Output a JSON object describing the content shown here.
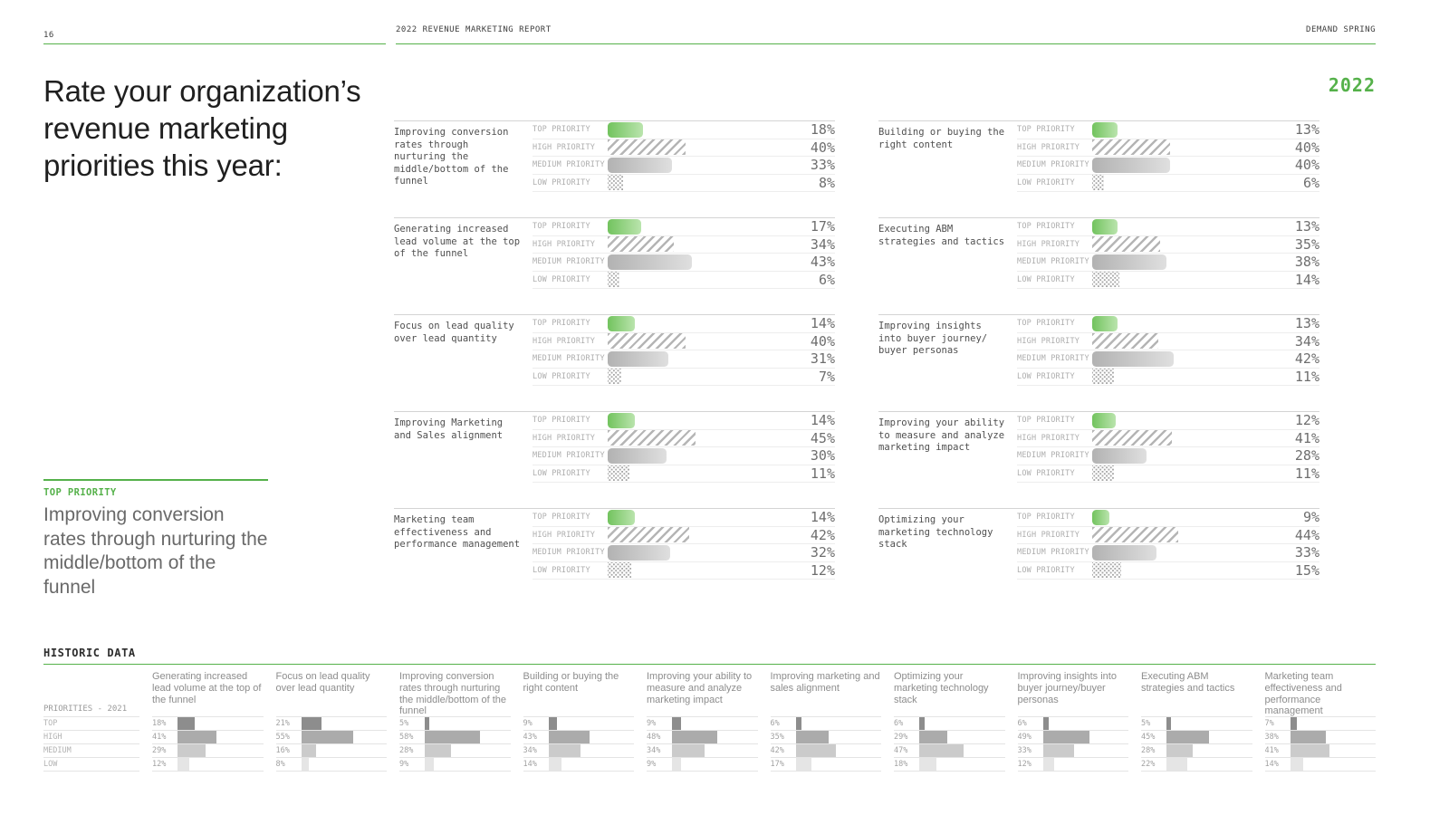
{
  "header": {
    "page_number": "16",
    "report_title": "2022 REVENUE MARKETING REPORT",
    "brand": "DEMAND SPRING",
    "year_badge": "2022"
  },
  "callout": {
    "label": "TOP PRIORITY",
    "text": "Improving conversion rates through nurturing the middle/bottom of the funnel",
    "lines": [
      "Improving conversion",
      "rates through nurturing the",
      "middle/bottom of the funnel"
    ]
  },
  "colors": {
    "accent": "#55b14a",
    "green_bar": [
      "#72c35e",
      "#bae4ad"
    ],
    "gray_bar": [
      "#b2b2b2",
      "#dfdfdf"
    ],
    "hatch": "#b5b5b5",
    "dot": "#a5a5a5",
    "historic_bars": [
      "#8d8d8d",
      "#ababab",
      "#cbcbcb",
      "#e5e5e5"
    ]
  },
  "chart_data": [
    {
      "type": "bar",
      "year": "2022",
      "title": "Rate your organization's revenue marketing priorities this year:",
      "title_lines": [
        "Rate your organization’s",
        "revenue marketing",
        "priorities this year:"
      ],
      "categories": [
        "TOP PRIORITY",
        "HIGH PRIORITY",
        "MEDIUM PRIORITY",
        "LOW PRIORITY"
      ],
      "unit": "%",
      "xlim": [
        0,
        100
      ],
      "legend_position": "none",
      "grid": false,
      "series": [
        {
          "name": "Improving conversion rates through nurturing the middle/bottom of the funnel",
          "column": "left",
          "values": [
            18,
            40,
            33,
            8
          ]
        },
        {
          "name": "Generating increased lead volume at the top of the funnel",
          "column": "left",
          "values": [
            17,
            34,
            43,
            6
          ]
        },
        {
          "name": "Focus on lead quality over lead quantity",
          "column": "left",
          "values": [
            14,
            40,
            31,
            7
          ]
        },
        {
          "name": "Improving Marketing and Sales alignment",
          "column": "left",
          "values": [
            14,
            45,
            30,
            11
          ]
        },
        {
          "name": "Marketing team effectiveness and performance management",
          "column": "left",
          "values": [
            14,
            42,
            32,
            12
          ]
        },
        {
          "name": "Building or buying the right content",
          "column": "right",
          "values": [
            13,
            40,
            40,
            6
          ]
        },
        {
          "name": "Executing ABM strategies and tactics",
          "column": "right",
          "values": [
            13,
            35,
            38,
            14
          ]
        },
        {
          "name": "Improving insights into buyer journey/ buyer personas",
          "column": "right",
          "values": [
            13,
            34,
            42,
            11
          ]
        },
        {
          "name": "Improving your ability to measure and analyze marketing impact",
          "column": "right",
          "values": [
            12,
            41,
            28,
            11
          ]
        },
        {
          "name": "Optimizing your marketing technology stack",
          "column": "right",
          "values": [
            9,
            44,
            33,
            15
          ]
        }
      ]
    },
    {
      "type": "bar",
      "title": "HISTORIC DATA",
      "legend_title": "PRIORITIES - 2021",
      "categories": [
        "TOP",
        "HIGH",
        "MEDIUM",
        "LOW"
      ],
      "unit": "%",
      "xlim": [
        0,
        100
      ],
      "grid": false,
      "series": [
        {
          "name": "Generating increased lead volume at the top of the funnel",
          "values": [
            18,
            41,
            29,
            12
          ]
        },
        {
          "name": "Focus on lead quality over lead quantity",
          "values": [
            21,
            55,
            16,
            8
          ]
        },
        {
          "name": "Improving conversion rates through nurturing the middle/bottom of the funnel",
          "values": [
            5,
            58,
            28,
            9
          ]
        },
        {
          "name": "Building or buying the right content",
          "values": [
            9,
            43,
            34,
            14
          ]
        },
        {
          "name": "Improving your ability to measure and analyze marketing impact",
          "values": [
            9,
            48,
            34,
            9
          ]
        },
        {
          "name": "Improving marketing and sales alignment",
          "values": [
            6,
            35,
            42,
            17
          ]
        },
        {
          "name": "Optimizing your marketing technology stack",
          "values": [
            6,
            29,
            47,
            18
          ]
        },
        {
          "name": "Improving insights into buyer journey/buyer personas",
          "values": [
            6,
            49,
            33,
            12
          ]
        },
        {
          "name": "Executing ABM strategies and tactics",
          "values": [
            5,
            45,
            28,
            22
          ]
        },
        {
          "name": "Marketing team effectiveness and performance management",
          "values": [
            7,
            38,
            41,
            14
          ]
        }
      ]
    }
  ]
}
